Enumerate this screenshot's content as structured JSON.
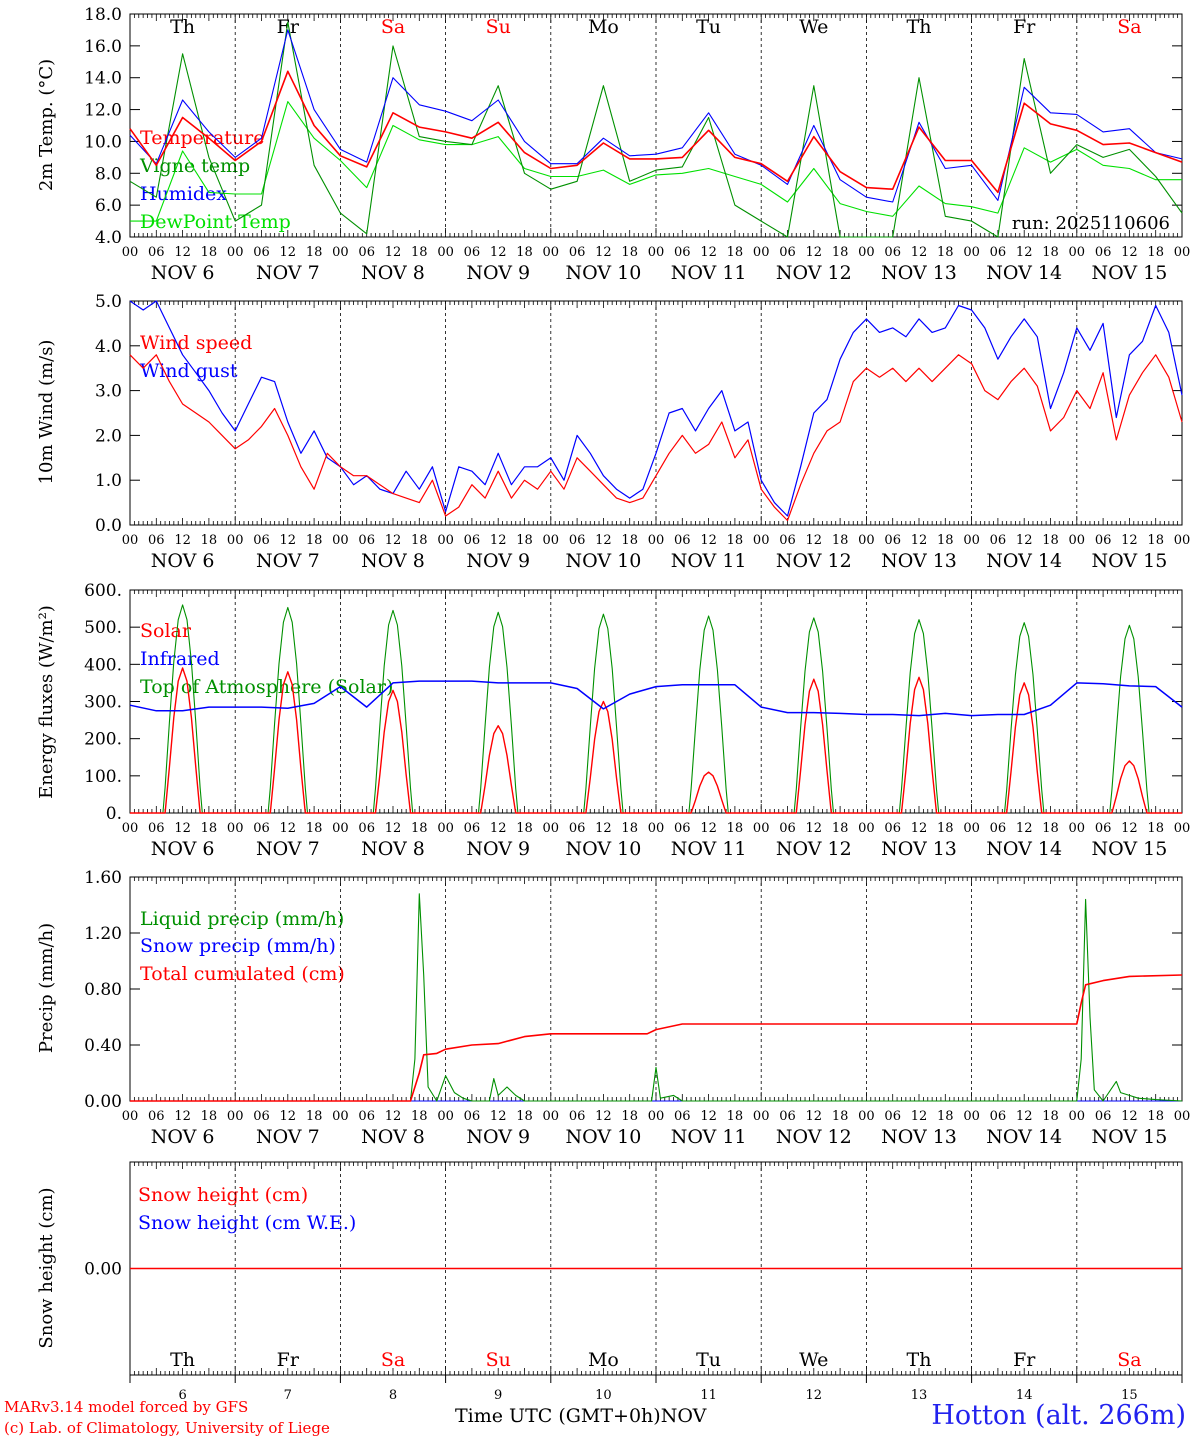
{
  "colors": {
    "red": "#ff0000",
    "green": "#009000",
    "blue": "#0000ff",
    "lime": "#00e000",
    "black": "#000000",
    "weekend": "#ff0000"
  },
  "time": {
    "days": [
      "Th",
      "Fr",
      "Sa",
      "Su",
      "Mo",
      "Tu",
      "We",
      "Th",
      "Fr",
      "Sa"
    ],
    "weekend": [
      false,
      false,
      true,
      true,
      false,
      false,
      false,
      false,
      false,
      true
    ],
    "dates": [
      "NOV  6",
      "NOV  7",
      "NOV  8",
      "NOV  9",
      "NOV 10",
      "NOV 11",
      "NOV 12",
      "NOV 13",
      "NOV 14",
      "NOV 15"
    ],
    "day_numbers": [
      "6",
      "7",
      "8",
      "9",
      "10",
      "11",
      "12",
      "13",
      "14",
      "15"
    ],
    "hour_labels": [
      "00",
      "06",
      "12",
      "18"
    ],
    "end_label": "00",
    "month": "NOV",
    "xlabel": "Time UTC (GMT+0h)"
  },
  "footer": {
    "credit_line1": "MARv3.14 model forced by GFS",
    "credit_line2": "(c) Lab. of Climatology, University of Liege",
    "station": "Hotton (alt. 266m)"
  },
  "chart_data": [
    {
      "type": "line",
      "ylabel": "2m Temp. (°C)",
      "ylim": [
        4.0,
        18.0
      ],
      "yticks": [
        "4.0",
        "6.0",
        "8.0",
        "10.0",
        "12.0",
        "14.0",
        "16.0",
        "18.0"
      ],
      "annotation": "run: 2025110606",
      "x_hours": [
        0,
        6,
        12,
        18,
        24,
        30,
        36,
        42,
        48,
        54,
        60,
        66,
        72,
        78,
        84,
        90,
        96,
        102,
        108,
        114,
        120,
        126,
        132,
        138,
        144,
        150,
        156,
        162,
        168,
        174,
        180,
        186,
        192,
        198,
        204,
        210,
        216,
        222,
        228,
        234,
        240
      ],
      "series": [
        {
          "name": "Temperature",
          "color": "red",
          "values": [
            10.8,
            8.5,
            11.5,
            10.2,
            8.8,
            10.0,
            14.4,
            11.0,
            9.1,
            8.4,
            11.8,
            10.9,
            10.6,
            10.2,
            11.2,
            9.3,
            8.3,
            8.5,
            9.9,
            8.9,
            8.9,
            9.0,
            10.7,
            9.0,
            8.6,
            7.5,
            10.3,
            8.1,
            7.1,
            7.0,
            10.9,
            8.8,
            8.8,
            6.8,
            12.4,
            11.1,
            10.7,
            9.8,
            9.9,
            9.3,
            8.7
          ]
        },
        {
          "name": "Vigne temp",
          "color": "green",
          "values": [
            7.5,
            6.5,
            15.5,
            9.0,
            5.0,
            6.0,
            17.5,
            8.5,
            5.5,
            4.2,
            16.0,
            10.3,
            10.0,
            9.8,
            13.5,
            8.0,
            7.0,
            7.5,
            13.5,
            7.5,
            8.2,
            8.4,
            11.5,
            6.0,
            5.0,
            3.5,
            13.5,
            4.0,
            3.0,
            2.8,
            14.0,
            5.3,
            5.0,
            4.0,
            15.2,
            8.0,
            9.8,
            9.0,
            9.5,
            7.8,
            5.5
          ]
        },
        {
          "name": "Humidex",
          "color": "blue",
          "values": [
            10.4,
            8.6,
            12.6,
            10.6,
            9.0,
            10.2,
            17.0,
            12.0,
            9.5,
            8.7,
            14.0,
            12.3,
            11.9,
            11.3,
            12.6,
            10.0,
            8.6,
            8.6,
            10.2,
            9.1,
            9.2,
            9.6,
            11.8,
            9.2,
            8.5,
            7.3,
            11.0,
            7.6,
            6.5,
            6.2,
            11.2,
            8.3,
            8.5,
            6.3,
            13.4,
            11.8,
            11.7,
            10.6,
            10.8,
            9.3,
            8.9
          ]
        },
        {
          "name": "DewPoint Temp",
          "color": "lime",
          "values": [
            5.0,
            5.0,
            9.4,
            6.8,
            6.7,
            6.7,
            12.5,
            10.2,
            8.8,
            7.1,
            11.0,
            10.1,
            9.8,
            9.8,
            10.3,
            8.3,
            7.8,
            7.8,
            8.2,
            7.3,
            7.9,
            8.0,
            8.3,
            7.8,
            7.3,
            6.2,
            8.3,
            6.1,
            5.6,
            5.3,
            7.2,
            6.1,
            5.9,
            5.5,
            9.6,
            8.7,
            9.5,
            8.5,
            8.3,
            7.6,
            7.6
          ]
        }
      ]
    },
    {
      "type": "line",
      "ylabel": "10m Wind (m/s)",
      "ylim": [
        0.0,
        5.0
      ],
      "yticks": [
        "0.0",
        "1.0",
        "2.0",
        "3.0",
        "4.0",
        "5.0"
      ],
      "x_hours": [
        0,
        3,
        6,
        9,
        12,
        15,
        18,
        21,
        24,
        27,
        30,
        33,
        36,
        39,
        42,
        45,
        48,
        51,
        54,
        57,
        60,
        63,
        66,
        69,
        72,
        75,
        78,
        81,
        84,
        87,
        90,
        93,
        96,
        99,
        102,
        105,
        108,
        111,
        114,
        117,
        120,
        123,
        126,
        129,
        132,
        135,
        138,
        141,
        144,
        147,
        150,
        153,
        156,
        159,
        162,
        165,
        168,
        171,
        174,
        177,
        180,
        183,
        186,
        189,
        192,
        195,
        198,
        201,
        204,
        207,
        210,
        213,
        216,
        219,
        222,
        225,
        228,
        231,
        234,
        237,
        240
      ],
      "series": [
        {
          "name": "Wind speed",
          "color": "red",
          "values": [
            3.8,
            3.5,
            3.8,
            3.2,
            2.7,
            2.5,
            2.3,
            2.0,
            1.7,
            1.9,
            2.2,
            2.6,
            2.0,
            1.3,
            0.8,
            1.6,
            1.3,
            1.1,
            1.1,
            0.9,
            0.7,
            0.6,
            0.5,
            1.0,
            0.2,
            0.4,
            0.9,
            0.6,
            1.2,
            0.6,
            1.0,
            0.8,
            1.2,
            0.8,
            1.5,
            1.2,
            0.9,
            0.6,
            0.5,
            0.6,
            1.1,
            1.6,
            2.0,
            1.6,
            1.8,
            2.3,
            1.5,
            1.9,
            0.8,
            0.4,
            0.1,
            0.9,
            1.6,
            2.1,
            2.3,
            3.2,
            3.5,
            3.3,
            3.5,
            3.2,
            3.5,
            3.2,
            3.5,
            3.8,
            3.6,
            3.0,
            2.8,
            3.2,
            3.5,
            3.1,
            2.1,
            2.4,
            3.0,
            2.6,
            3.4,
            1.9,
            2.9,
            3.4,
            3.8,
            3.3,
            2.3
          ]
        },
        {
          "name": "Wind gust",
          "color": "blue",
          "values": [
            5.0,
            4.8,
            5.0,
            4.4,
            3.8,
            3.4,
            3.0,
            2.5,
            2.1,
            2.7,
            3.3,
            3.2,
            2.3,
            1.6,
            2.1,
            1.5,
            1.3,
            0.9,
            1.1,
            0.8,
            0.7,
            1.2,
            0.8,
            1.3,
            0.3,
            1.3,
            1.2,
            0.9,
            1.6,
            0.9,
            1.3,
            1.3,
            1.5,
            1.0,
            2.0,
            1.6,
            1.1,
            0.8,
            0.6,
            0.8,
            1.6,
            2.5,
            2.6,
            2.1,
            2.6,
            3.0,
            2.1,
            2.3,
            1.0,
            0.5,
            0.2,
            1.3,
            2.5,
            2.8,
            3.7,
            4.3,
            4.6,
            4.3,
            4.4,
            4.2,
            4.6,
            4.3,
            4.4,
            4.9,
            4.8,
            4.4,
            3.7,
            4.2,
            4.6,
            4.2,
            2.6,
            3.4,
            4.4,
            3.9,
            4.5,
            2.4,
            3.8,
            4.1,
            4.9,
            4.3,
            2.9
          ]
        }
      ]
    },
    {
      "type": "line",
      "ylabel": "Energy fluxes (W/m²)",
      "ylim": [
        0,
        600
      ],
      "yticks": [
        "0.",
        "100.",
        "200.",
        "300.",
        "400.",
        "500.",
        "600."
      ],
      "day_peaks": {
        "toa_solar": [
          560,
          553,
          545,
          540,
          535,
          530,
          525,
          520,
          512,
          505
        ],
        "solar": [
          390,
          380,
          330,
          235,
          300,
          110,
          360,
          365,
          350,
          140
        ]
      },
      "infrared_x_hours": [
        0,
        6,
        12,
        18,
        24,
        30,
        36,
        42,
        48,
        54,
        60,
        66,
        72,
        78,
        84,
        90,
        96,
        102,
        108,
        114,
        120,
        126,
        132,
        138,
        144,
        150,
        156,
        162,
        168,
        174,
        180,
        186,
        192,
        198,
        204,
        210,
        216,
        222,
        228,
        234,
        240
      ],
      "series": [
        {
          "name": "Solar",
          "color": "red"
        },
        {
          "name": "Infrared",
          "color": "blue",
          "values": [
            290,
            275,
            275,
            285,
            285,
            285,
            282,
            295,
            340,
            285,
            350,
            355,
            355,
            355,
            350,
            350,
            350,
            335,
            280,
            320,
            340,
            345,
            345,
            345,
            285,
            270,
            270,
            268,
            265,
            265,
            262,
            268,
            262,
            265,
            265,
            290,
            350,
            348,
            342,
            340,
            285
          ]
        },
        {
          "name": "Top of Atmosphere (Solar)",
          "color": "green"
        }
      ]
    },
    {
      "type": "line",
      "ylabel": "Precip (mm/h)",
      "ylim": [
        0.0,
        1.6
      ],
      "yticks": [
        "0.00",
        "0.40",
        "0.80",
        "1.20",
        "1.60"
      ],
      "series": [
        {
          "name": "Liquid precip (mm/h)",
          "color": "green",
          "points": [
            [
              0,
              0
            ],
            [
              64,
              0
            ],
            [
              65,
              0.3
            ],
            [
              66,
              1.48
            ],
            [
              67,
              0.9
            ],
            [
              68,
              0.1
            ],
            [
              70,
              0
            ],
            [
              72,
              0.18
            ],
            [
              74,
              0.06
            ],
            [
              76,
              0.02
            ],
            [
              78,
              0
            ],
            [
              82,
              0
            ],
            [
              83,
              0.16
            ],
            [
              84,
              0.04
            ],
            [
              86,
              0.1
            ],
            [
              88,
              0.04
            ],
            [
              90,
              0
            ],
            [
              119,
              0
            ],
            [
              120,
              0.24
            ],
            [
              121,
              0.02
            ],
            [
              124,
              0.04
            ],
            [
              126,
              0
            ],
            [
              216,
              0
            ],
            [
              217,
              0.3
            ],
            [
              218,
              1.44
            ],
            [
              219,
              0.6
            ],
            [
              220,
              0.08
            ],
            [
              222,
              0
            ],
            [
              225,
              0.14
            ],
            [
              226,
              0.06
            ],
            [
              228,
              0.04
            ],
            [
              230,
              0.02
            ],
            [
              234,
              0.01
            ],
            [
              240,
              0
            ]
          ]
        },
        {
          "name": "Snow precip (mm/h)",
          "color": "blue",
          "points": [
            [
              0,
              0
            ],
            [
              240,
              0
            ]
          ]
        },
        {
          "name": "Total cumulated (cm)",
          "color": "red",
          "points": [
            [
              0,
              0
            ],
            [
              64,
              0
            ],
            [
              66,
              0.2
            ],
            [
              67,
              0.33
            ],
            [
              70,
              0.34
            ],
            [
              72,
              0.37
            ],
            [
              78,
              0.4
            ],
            [
              84,
              0.41
            ],
            [
              90,
              0.46
            ],
            [
              96,
              0.48
            ],
            [
              118,
              0.48
            ],
            [
              120,
              0.51
            ],
            [
              126,
              0.55
            ],
            [
              216,
              0.55
            ],
            [
              217,
              0.7
            ],
            [
              218,
              0.83
            ],
            [
              222,
              0.86
            ],
            [
              228,
              0.89
            ],
            [
              240,
              0.9
            ]
          ]
        }
      ]
    },
    {
      "type": "line",
      "ylabel": "Snow height (cm)",
      "yticks": [
        "0.00"
      ],
      "series": [
        {
          "name": "Snow height (cm)",
          "color": "red",
          "values": [
            0,
            0
          ]
        },
        {
          "name": "Snow height (cm W.E.)",
          "color": "blue",
          "values": [
            0,
            0
          ]
        }
      ]
    }
  ]
}
